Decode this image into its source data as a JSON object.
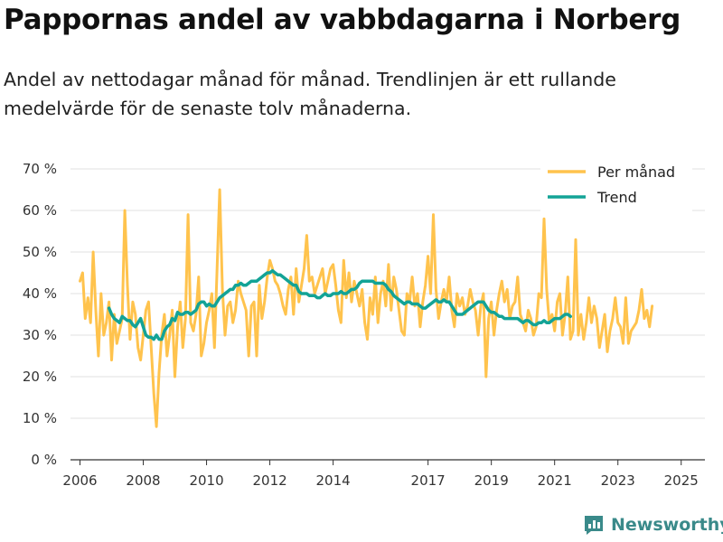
{
  "title": "Pappornas andel av vabbdagarna i Norberg",
  "subtitle": "Andel av nettodagar månad för månad. Trendlinjen är ett rullande medelvärde för de senaste tolv månaderna.",
  "brand": "Newsworthy",
  "colors": {
    "monthly": "#ffc34d",
    "trend": "#13a396",
    "grid": "#e2e2e2",
    "axis": "#333333"
  },
  "chart_data": {
    "type": "line",
    "title": "Pappornas andel av vabbdagarna i Norberg",
    "xlabel": "",
    "ylabel": "",
    "ylim": [
      0,
      70
    ],
    "yticks": [
      0,
      10,
      20,
      30,
      40,
      50,
      60,
      70
    ],
    "ytick_labels": [
      "0 %",
      "10 %",
      "20 %",
      "30 %",
      "40 %",
      "50 %",
      "60 %",
      "70 %"
    ],
    "xlim": [
      2005.7,
      2025.75
    ],
    "xticks": [
      2006,
      2008,
      2010,
      2012,
      2014,
      2017,
      2019,
      2021,
      2023,
      2025
    ],
    "xtick_labels": [
      "2006",
      "2008",
      "2010",
      "2012",
      "2014",
      "2017",
      "2019",
      "2021",
      "2023",
      "2025"
    ],
    "legend": [
      "Per månad",
      "Trend"
    ],
    "legend_position": "top-right",
    "series": [
      {
        "name": "Per månad",
        "x_start": 2006.0,
        "step": 0.08333,
        "values": [
          43,
          45,
          34,
          39,
          33,
          50,
          36,
          25,
          40,
          30,
          33,
          38,
          24,
          35,
          28,
          31,
          34,
          60,
          42,
          29,
          38,
          35,
          27,
          24,
          30,
          36,
          38,
          27,
          16,
          8,
          21,
          30,
          35,
          25,
          30,
          36,
          20,
          32,
          38,
          27,
          34,
          59,
          33,
          31,
          35,
          44,
          25,
          28,
          33,
          36,
          40,
          27,
          46,
          65,
          41,
          30,
          37,
          38,
          33,
          36,
          43,
          40,
          38,
          36,
          25,
          37,
          38,
          25,
          42,
          34,
          38,
          44,
          48,
          46,
          43,
          42,
          40,
          37,
          35,
          41,
          44,
          35,
          46,
          38,
          42,
          46,
          54,
          43,
          44,
          40,
          42,
          44,
          46,
          40,
          43,
          46,
          47,
          42,
          36,
          33,
          48,
          39,
          45,
          38,
          43,
          40,
          37,
          41,
          33,
          29,
          39,
          35,
          44,
          33,
          40,
          43,
          37,
          47,
          36,
          44,
          41,
          36,
          31,
          30,
          40,
          38,
          44,
          37,
          40,
          32,
          38,
          42,
          49,
          40,
          59,
          41,
          34,
          38,
          41,
          38,
          44,
          36,
          32,
          40,
          37,
          39,
          35,
          37,
          41,
          38,
          36,
          30,
          37,
          40,
          20,
          34,
          38,
          30,
          36,
          40,
          43,
          38,
          41,
          34,
          37,
          38,
          44,
          35,
          33,
          31,
          36,
          34,
          30,
          32,
          40,
          39,
          58,
          41,
          33,
          35,
          31,
          38,
          40,
          30,
          35,
          44,
          29,
          31,
          53,
          30,
          35,
          29,
          33,
          39,
          33,
          37,
          34,
          27,
          31,
          35,
          26,
          31,
          34,
          39,
          33,
          32,
          28,
          39,
          28,
          31,
          32,
          33,
          36,
          41,
          34,
          36,
          32,
          37
        ],
        "color": "#ffc34d"
      },
      {
        "name": "Trend",
        "x_start": 2006.9167,
        "step": 0.08333,
        "values": [
          36.5,
          35,
          34,
          33.5,
          33,
          34.5,
          34,
          33.5,
          33.5,
          32.5,
          32,
          33,
          34,
          32,
          30,
          29.5,
          29.5,
          29,
          30,
          29,
          29,
          31,
          32,
          32.5,
          34,
          33.5,
          35.5,
          35,
          35,
          35.5,
          35.5,
          35,
          35.5,
          36,
          37.5,
          38,
          38,
          37,
          37.5,
          37,
          37,
          38,
          39,
          39.5,
          40,
          40.5,
          41,
          41,
          42,
          42,
          42.5,
          42,
          42,
          42.5,
          43,
          43,
          43,
          43.5,
          44,
          44.5,
          45,
          45,
          45.5,
          45,
          44.5,
          44.5,
          44,
          43.5,
          43,
          42.5,
          42,
          42,
          40.5,
          40,
          40,
          40,
          39.5,
          39.5,
          39.5,
          39,
          39,
          39.5,
          40,
          39.5,
          39.5,
          40,
          40,
          40,
          40.5,
          40,
          40,
          40.5,
          41,
          41,
          41.5,
          42.5,
          43,
          43,
          43,
          43,
          43,
          42.5,
          42.5,
          42.5,
          42.5,
          42,
          41,
          40.5,
          39.5,
          39,
          38.5,
          38,
          37.5,
          38,
          38,
          37.5,
          37.5,
          37.5,
          37,
          36.5,
          36.5,
          37,
          37.5,
          38,
          38.5,
          38,
          38,
          38.5,
          38,
          38,
          37,
          36,
          35,
          35,
          35,
          35.5,
          36,
          36.5,
          37,
          37.5,
          38,
          38,
          38,
          37,
          36,
          35.5,
          35.5,
          35,
          34.5,
          34.5,
          34,
          34,
          34,
          34,
          34,
          34,
          33.5,
          33,
          33.5,
          33.5,
          33,
          32.5,
          32.5,
          33,
          33,
          33.5,
          33,
          33,
          33.5,
          34,
          34,
          34,
          34.5,
          35,
          35,
          34.5
        ],
        "color": "#13a396"
      }
    ]
  }
}
